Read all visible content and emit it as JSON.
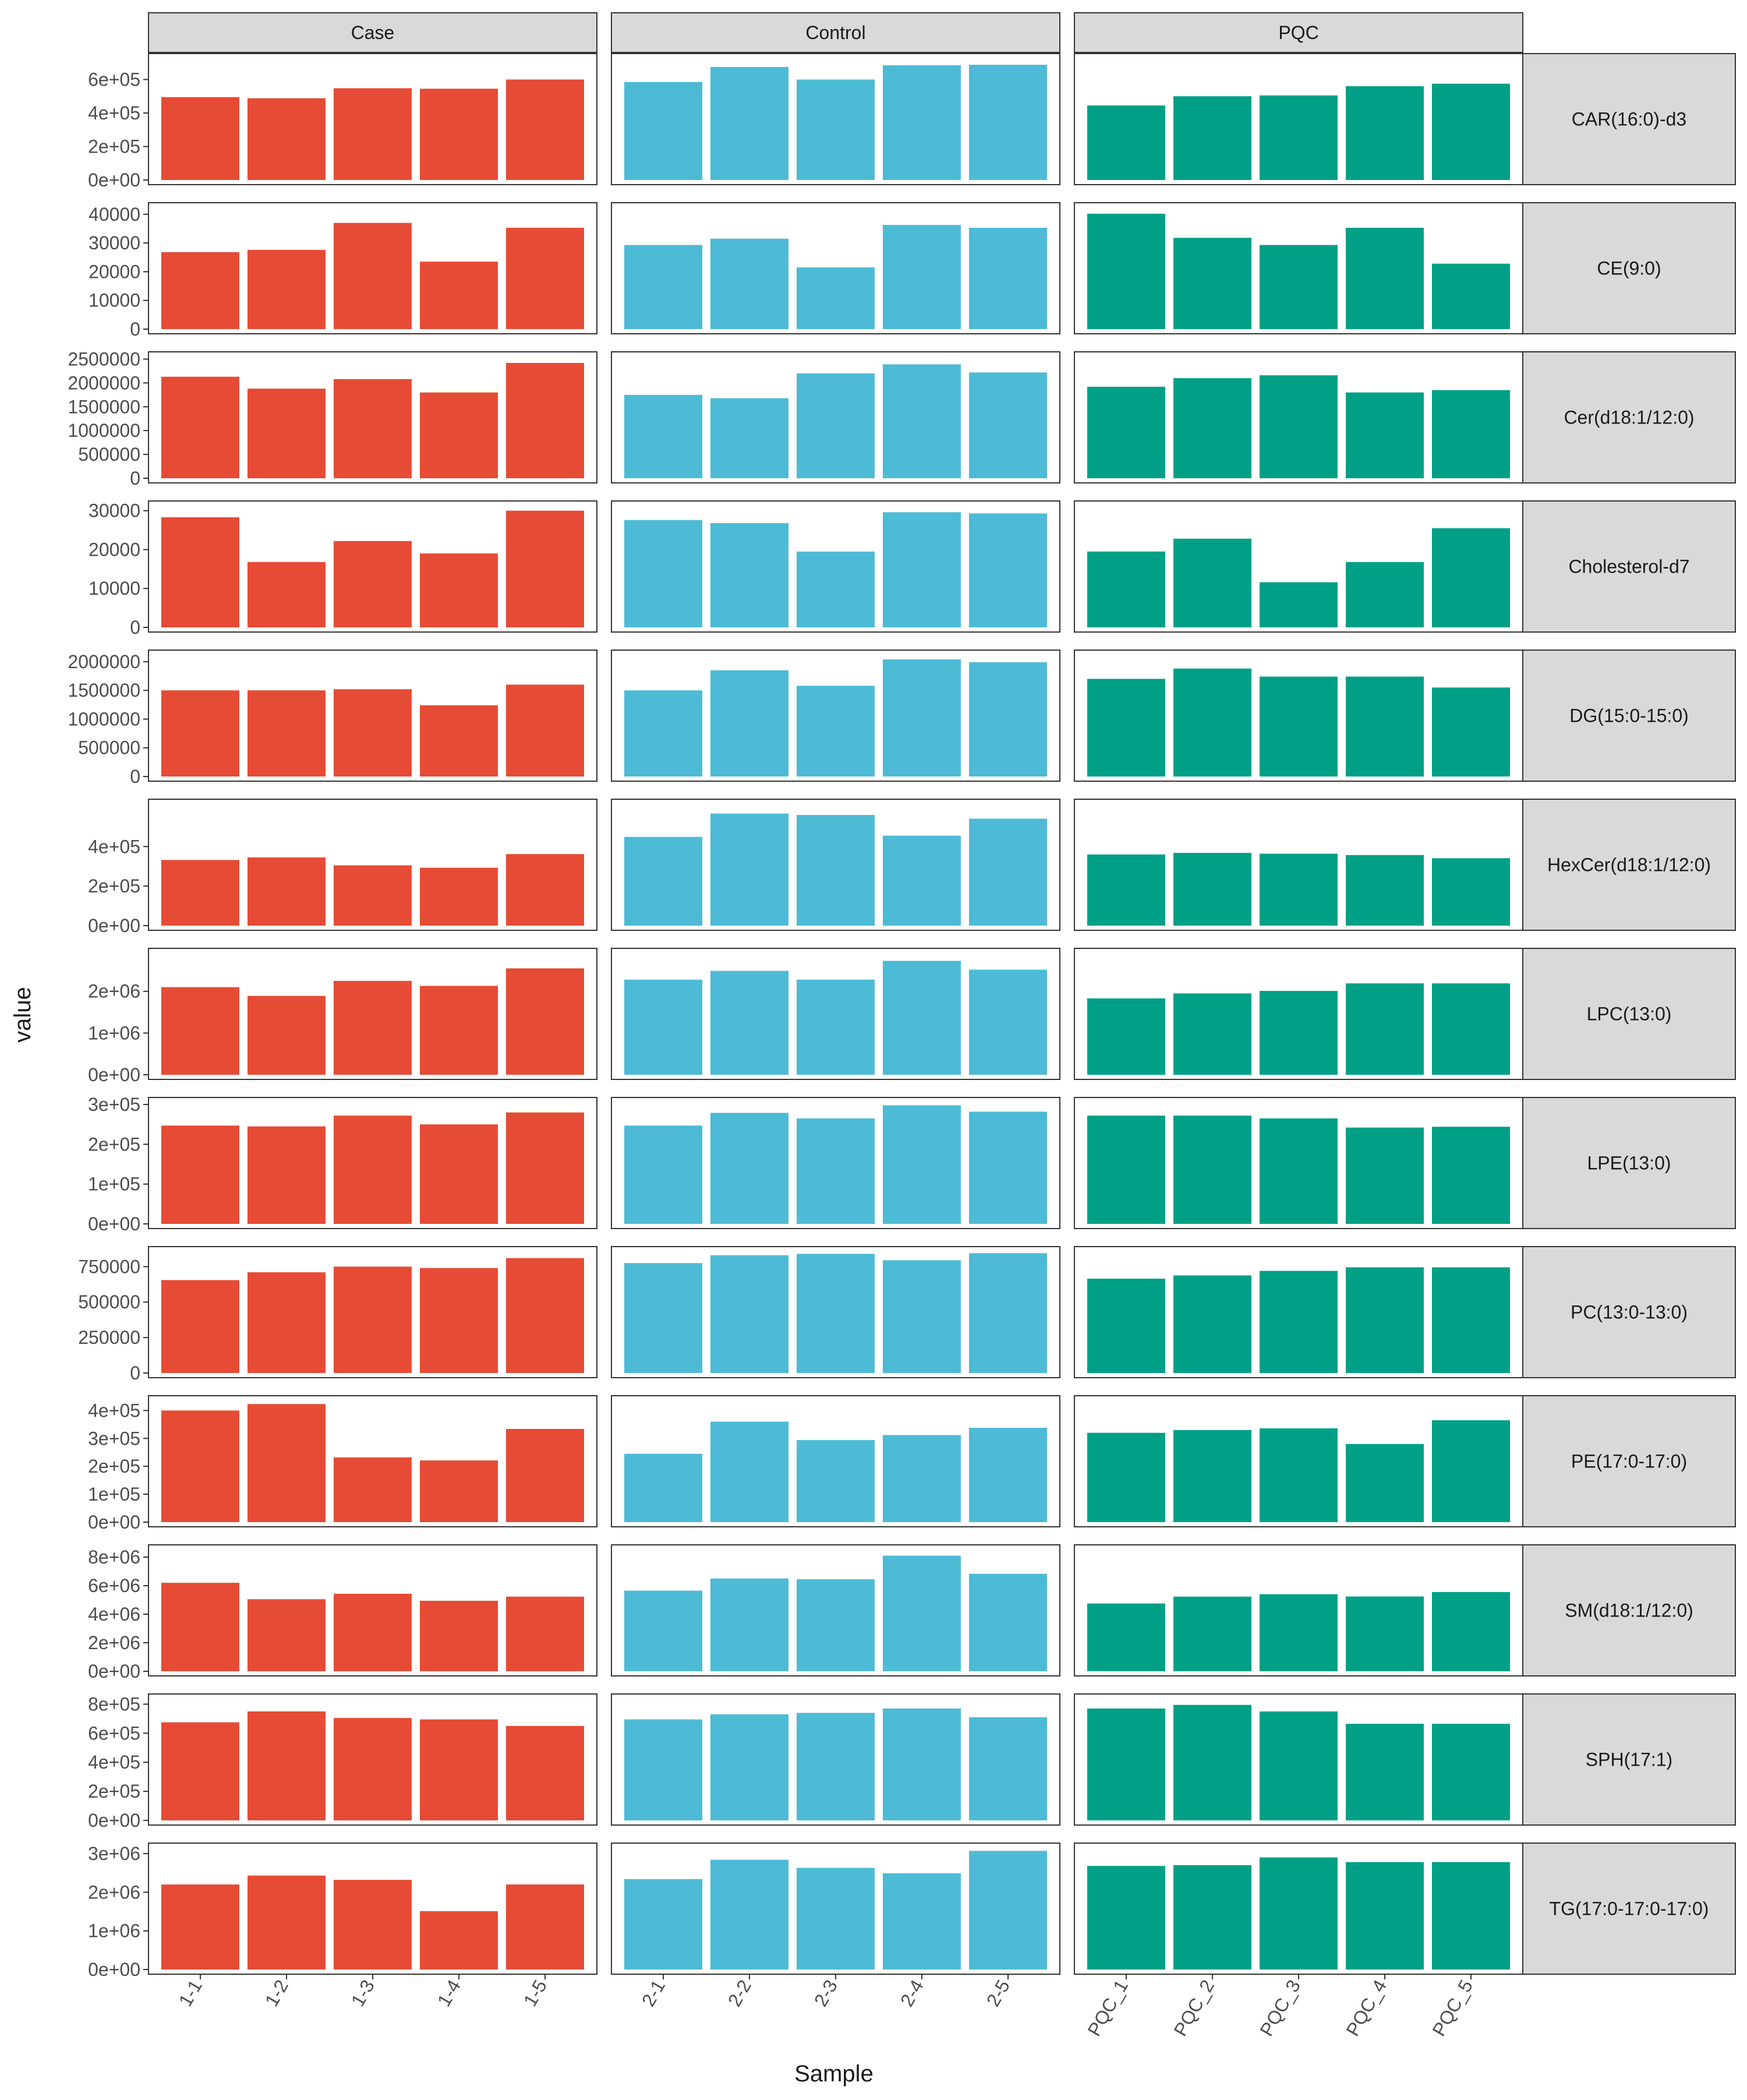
{
  "chart_data": {
    "type": "bar",
    "layout": "facet-grid",
    "xlabel": "Sample",
    "ylabel": "value",
    "grid": false,
    "legend": "none",
    "groups": [
      {
        "name": "Case",
        "color": "#E64B35",
        "samples": [
          "1-1",
          "1-2",
          "1-3",
          "1-4",
          "1-5"
        ]
      },
      {
        "name": "Control",
        "color": "#4DBBD5",
        "samples": [
          "2-1",
          "2-2",
          "2-3",
          "2-4",
          "2-5"
        ]
      },
      {
        "name": "PQC",
        "color": "#00A087",
        "samples": [
          "PQC_1",
          "PQC_2",
          "PQC_3",
          "PQC_4",
          "PQC_5"
        ]
      }
    ],
    "rows": [
      {
        "name": "CAR(16:0)-d3",
        "ylim": [
          0,
          720000
        ],
        "ticks": [
          {
            "v": 0,
            "label": "0e+00"
          },
          {
            "v": 200000,
            "label": "2e+05"
          },
          {
            "v": 400000,
            "label": "4e+05"
          },
          {
            "v": 600000,
            "label": "6e+05"
          }
        ],
        "values": [
          [
            495000,
            488000,
            548000,
            545000,
            600000
          ],
          [
            585000,
            675000,
            600000,
            685000,
            688000
          ],
          [
            445000,
            500000,
            505000,
            560000,
            575000
          ]
        ]
      },
      {
        "name": "CE(9:0)",
        "ylim": [
          0,
          42000
        ],
        "ticks": [
          {
            "v": 0,
            "label": "0"
          },
          {
            "v": 10000,
            "label": "10000"
          },
          {
            "v": 20000,
            "label": "20000"
          },
          {
            "v": 30000,
            "label": "30000"
          },
          {
            "v": 40000,
            "label": "40000"
          }
        ],
        "values": [
          [
            26800,
            27600,
            37000,
            23500,
            35300
          ],
          [
            29300,
            31500,
            21500,
            36300,
            35300
          ],
          [
            40200,
            31800,
            29300,
            35300,
            22800
          ]
        ]
      },
      {
        "name": "Cer(d18:1/12:0)",
        "ylim": [
          0,
          2530000
        ],
        "ticks": [
          {
            "v": 0,
            "label": "0"
          },
          {
            "v": 500000,
            "label": "500000"
          },
          {
            "v": 1000000,
            "label": "1000000"
          },
          {
            "v": 1500000,
            "label": "1500000"
          },
          {
            "v": 2000000,
            "label": "2000000"
          },
          {
            "v": 2500000,
            "label": "2500000"
          }
        ],
        "values": [
          [
            2130000,
            1880000,
            2080000,
            1800000,
            2420000
          ],
          [
            1750000,
            1680000,
            2200000,
            2390000,
            2220000
          ],
          [
            1920000,
            2100000,
            2160000,
            1800000,
            1850000
          ]
        ]
      },
      {
        "name": "Cholesterol-d7",
        "ylim": [
          0,
          31000
        ],
        "ticks": [
          {
            "v": 0,
            "label": "0"
          },
          {
            "v": 10000,
            "label": "10000"
          },
          {
            "v": 20000,
            "label": "20000"
          },
          {
            "v": 30000,
            "label": "30000"
          }
        ],
        "values": [
          [
            28300,
            16800,
            22200,
            19000,
            30000
          ],
          [
            27600,
            26800,
            19500,
            29600,
            29300
          ],
          [
            19500,
            22800,
            11600,
            16800,
            25500
          ]
        ]
      },
      {
        "name": "DG(15:0-15:0)",
        "ylim": [
          0,
          2100000
        ],
        "ticks": [
          {
            "v": 0,
            "label": "0"
          },
          {
            "v": 500000,
            "label": "500000"
          },
          {
            "v": 1000000,
            "label": "1000000"
          },
          {
            "v": 1500000,
            "label": "1500000"
          },
          {
            "v": 2000000,
            "label": "2000000"
          }
        ],
        "values": [
          [
            1500000,
            1500000,
            1520000,
            1240000,
            1600000
          ],
          [
            1500000,
            1850000,
            1580000,
            2040000,
            1990000
          ],
          [
            1700000,
            1880000,
            1740000,
            1740000,
            1550000
          ]
        ]
      },
      {
        "name": "HexCer(d18:1/12:0)",
        "ylim": [
          0,
          610000
        ],
        "ticks": [
          {
            "v": 0,
            "label": "0e+00"
          },
          {
            "v": 200000,
            "label": "2e+05"
          },
          {
            "v": 400000,
            "label": "4e+05"
          }
        ],
        "values": [
          [
            332000,
            345000,
            305000,
            293000,
            362000
          ],
          [
            449000,
            567000,
            560000,
            455000,
            541000
          ],
          [
            360000,
            368000,
            364000,
            357000,
            341000
          ]
        ]
      },
      {
        "name": "LPC(13:0)",
        "ylim": [
          0,
          2890000
        ],
        "ticks": [
          {
            "v": 0,
            "label": "0e+00"
          },
          {
            "v": 1000000,
            "label": "1e+06"
          },
          {
            "v": 2000000,
            "label": "2e+06"
          }
        ],
        "values": [
          [
            2100000,
            1890000,
            2250000,
            2130000,
            2550000
          ],
          [
            2280000,
            2490000,
            2280000,
            2730000,
            2520000
          ],
          [
            1830000,
            1950000,
            2010000,
            2190000,
            2190000
          ]
        ]
      },
      {
        "name": "LPE(13:0)",
        "ylim": [
          0,
          303000
        ],
        "ticks": [
          {
            "v": 0,
            "label": "0e+00"
          },
          {
            "v": 100000,
            "label": "1e+05"
          },
          {
            "v": 200000,
            "label": "2e+05"
          },
          {
            "v": 300000,
            "label": "3e+05"
          }
        ],
        "values": [
          [
            247000,
            245000,
            272000,
            250000,
            280000
          ],
          [
            247000,
            279000,
            265000,
            298000,
            282000
          ],
          [
            272000,
            272000,
            265000,
            242000,
            244000
          ]
        ]
      },
      {
        "name": "PC(13:0-13:0)",
        "ylim": [
          0,
          850000
        ],
        "ticks": [
          {
            "v": 0,
            "label": "0"
          },
          {
            "v": 250000,
            "label": "250000"
          },
          {
            "v": 500000,
            "label": "500000"
          },
          {
            "v": 750000,
            "label": "750000"
          }
        ],
        "values": [
          [
            655000,
            710000,
            750000,
            740000,
            810000
          ],
          [
            775000,
            830000,
            840000,
            795000,
            845000
          ],
          [
            665000,
            688000,
            720000,
            745000,
            745000
          ]
        ]
      },
      {
        "name": "PE(17:0-17:0)",
        "ylim": [
          0,
          432000
        ],
        "ticks": [
          {
            "v": 0,
            "label": "0e+00"
          },
          {
            "v": 100000,
            "label": "1e+05"
          },
          {
            "v": 200000,
            "label": "2e+05"
          },
          {
            "v": 300000,
            "label": "3e+05"
          },
          {
            "v": 400000,
            "label": "4e+05"
          }
        ],
        "values": [
          [
            400000,
            423000,
            232000,
            221000,
            334000
          ],
          [
            245000,
            360000,
            294000,
            312000,
            338000
          ],
          [
            320000,
            330000,
            336000,
            280000,
            365000
          ]
        ]
      },
      {
        "name": "SM(d18:1/12:0)",
        "ylim": [
          0,
          8450000
        ],
        "ticks": [
          {
            "v": 0,
            "label": "0e+00"
          },
          {
            "v": 2000000,
            "label": "2e+06"
          },
          {
            "v": 4000000,
            "label": "4e+06"
          },
          {
            "v": 6000000,
            "label": "6e+06"
          },
          {
            "v": 8000000,
            "label": "8e+06"
          }
        ],
        "values": [
          [
            6200000,
            5050000,
            5430000,
            4940000,
            5230000
          ],
          [
            5650000,
            6500000,
            6450000,
            8100000,
            6830000
          ],
          [
            4750000,
            5230000,
            5400000,
            5240000,
            5550000
          ]
        ]
      },
      {
        "name": "SPH(17:1)",
        "ylim": [
          0,
          830000
        ],
        "ticks": [
          {
            "v": 0,
            "label": "0e+00"
          },
          {
            "v": 200000,
            "label": "2e+05"
          },
          {
            "v": 400000,
            "label": "4e+05"
          },
          {
            "v": 600000,
            "label": "6e+05"
          },
          {
            "v": 800000,
            "label": "8e+05"
          }
        ],
        "values": [
          [
            675000,
            750000,
            705000,
            695000,
            650000
          ],
          [
            695000,
            730000,
            740000,
            770000,
            710000
          ],
          [
            770000,
            795000,
            750000,
            665000,
            665000
          ]
        ]
      },
      {
        "name": "TG(17:0-17:0-17:0)",
        "ylim": [
          0,
          3120000
        ],
        "ticks": [
          {
            "v": 0,
            "label": "0e+00"
          },
          {
            "v": 1000000,
            "label": "1e+06"
          },
          {
            "v": 2000000,
            "label": "2e+06"
          },
          {
            "v": 3000000,
            "label": "3e+06"
          }
        ],
        "values": [
          [
            2200000,
            2430000,
            2320000,
            1510000,
            2200000
          ],
          [
            2340000,
            2840000,
            2630000,
            2490000,
            3070000
          ],
          [
            2680000,
            2700000,
            2900000,
            2780000,
            2780000
          ]
        ]
      }
    ]
  }
}
